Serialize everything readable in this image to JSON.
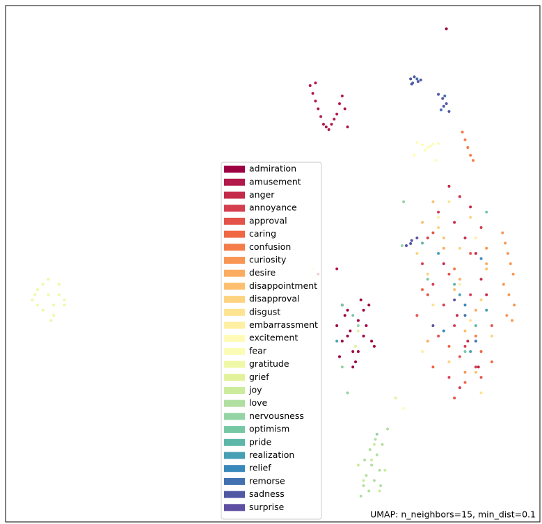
{
  "chart_data": {
    "type": "scatter",
    "annotation": "UMAP: n_neighbors=15, min_dist=0.1",
    "xlim": [
      0,
      100
    ],
    "ylim": [
      0,
      100
    ],
    "legend": "lower center",
    "series": [
      {
        "name": "admiration",
        "color": "#9e0142",
        "x": [
          62,
          63,
          64,
          65,
          66,
          67,
          68,
          69,
          62.5,
          63.5,
          64.5,
          65.5,
          66.5,
          67.5,
          68.5,
          63,
          65,
          67,
          64,
          66,
          82.5
        ],
        "y": [
          38,
          35,
          41,
          33,
          39,
          36,
          42,
          34,
          32,
          40,
          37,
          31,
          43,
          38,
          35,
          42,
          30,
          41,
          36,
          33,
          95.5
        ]
      },
      {
        "name": "amusement",
        "color": "#b11a4a",
        "x": [
          57,
          57.5,
          58,
          58.5,
          59,
          59.5,
          60,
          61,
          62,
          62.5,
          63,
          63.5,
          64,
          58,
          60.5,
          61.5,
          58.5,
          62
        ],
        "y": [
          84.5,
          83,
          81.5,
          80,
          78.5,
          77,
          76.5,
          77,
          79,
          81,
          82.5,
          80,
          76.5,
          85,
          76,
          78,
          48,
          49
        ]
      },
      {
        "name": "anger",
        "color": "#c42b4a",
        "x": [
          83,
          85,
          87,
          84,
          86,
          88,
          82,
          89,
          90,
          84.5,
          86.5,
          88.5
        ],
        "y": [
          65,
          63,
          61,
          58,
          55,
          52,
          50,
          47,
          44,
          40,
          35,
          30
        ]
      },
      {
        "name": "annoyance",
        "color": "#d53e4f",
        "x": [
          78,
          80,
          82,
          84,
          86,
          88,
          79,
          81,
          83,
          85,
          87,
          89
        ],
        "y": [
          50,
          46,
          42,
          38,
          34,
          30,
          55,
          60,
          28,
          26,
          44,
          57
        ]
      },
      {
        "name": "approval",
        "color": "#e35349",
        "x": [
          77,
          79,
          81,
          83,
          85,
          87,
          89,
          91,
          80,
          84
        ],
        "y": [
          40,
          44,
          36,
          48,
          32,
          52,
          28,
          38,
          56,
          24
        ]
      },
      {
        "name": "caring",
        "color": "#f06744",
        "x": [
          80,
          83,
          86,
          89,
          78,
          91
        ],
        "y": [
          30,
          34,
          27,
          33,
          45,
          31
        ]
      },
      {
        "name": "confusion",
        "color": "#f47c4a",
        "x": [
          85.5,
          86,
          86.5,
          87,
          87.5,
          84,
          88
        ],
        "y": [
          75.5,
          74,
          72.5,
          71,
          70,
          49,
          36
        ]
      },
      {
        "name": "curiosity",
        "color": "#f99655",
        "x": [
          93,
          93.5,
          94,
          94.5,
          95,
          93.2,
          94.2,
          95.2,
          93.8,
          94.8,
          90,
          86
        ],
        "y": [
          56,
          54,
          52,
          50,
          48,
          46,
          44,
          42,
          40,
          39,
          53,
          29
        ]
      },
      {
        "name": "desire",
        "color": "#fcac61",
        "x": [
          82,
          85,
          88,
          79,
          90
        ],
        "y": [
          53,
          47,
          41,
          35,
          50
        ]
      },
      {
        "name": "disappointment",
        "color": "#fdbf6f",
        "x": [
          80,
          82,
          84,
          86,
          88,
          90,
          78
        ],
        "y": [
          62,
          55,
          45,
          37,
          29,
          49,
          58
        ]
      },
      {
        "name": "disapproval",
        "color": "#fdd380",
        "x": [
          79,
          81,
          83,
          85,
          87,
          89,
          77,
          91
        ],
        "y": [
          48,
          57,
          31,
          53,
          59,
          43,
          52,
          36
        ]
      },
      {
        "name": "disgust",
        "color": "#fee391",
        "x": [
          83,
          87,
          80,
          89
        ],
        "y": [
          62,
          39,
          42,
          25
        ]
      },
      {
        "name": "embarrassment",
        "color": "#feefa3",
        "x": [
          81,
          85,
          78,
          88,
          57.5,
          57.8
        ],
        "y": [
          59,
          46,
          33,
          55,
          49,
          47.5
        ]
      },
      {
        "name": "excitement",
        "color": "#fffbb7",
        "x": [
          77,
          78,
          79,
          80,
          76.5
        ],
        "y": [
          73.5,
          73,
          72.5,
          73.2,
          71
        ]
      },
      {
        "name": "fear",
        "color": "#fbfdb6",
        "x": [
          78.5,
          79.5,
          81,
          80.5,
          74.5
        ],
        "y": [
          72,
          72.8,
          73.3,
          70,
          22
        ]
      },
      {
        "name": "gratitude",
        "color": "#eff8a6",
        "x": [
          5,
          6,
          7,
          8,
          9,
          10,
          11,
          6,
          7,
          9,
          10,
          8,
          5.5,
          11,
          8.5
        ],
        "y": [
          43,
          45,
          41,
          44,
          42,
          46,
          43,
          42,
          46,
          40,
          44,
          47,
          44,
          42,
          39
        ]
      },
      {
        "name": "grief",
        "color": "#e1f29a",
        "x": [
          66,
          65.5,
          73
        ],
        "y": [
          37,
          34,
          24
        ]
      },
      {
        "name": "joy",
        "color": "#cceb9d",
        "x": [
          67,
          68.5,
          70,
          69,
          71,
          66
        ],
        "y": [
          8,
          12,
          6,
          15,
          10,
          11
        ]
      },
      {
        "name": "love",
        "color": "#b1dfa2",
        "x": [
          66.5,
          67,
          67.5,
          68,
          68.5,
          69,
          69.5,
          70,
          70.5,
          67.2,
          68.2,
          69.2,
          70.2,
          71.5
        ],
        "y": [
          5,
          7,
          9,
          6,
          11,
          8,
          13,
          10,
          15,
          12,
          14,
          16,
          7,
          18
        ]
      },
      {
        "name": "nervousness",
        "color": "#94d4a4",
        "x": [
          63,
          64,
          66,
          69.5,
          74.2,
          74.5
        ],
        "y": [
          30,
          25,
          38,
          17,
          53.5,
          62
        ]
      },
      {
        "name": "optimism",
        "color": "#76c8a5",
        "x": [
          63,
          65,
          79,
          86,
          90
        ],
        "y": [
          42,
          40,
          47,
          33,
          60
        ]
      },
      {
        "name": "pride",
        "color": "#5db7a9",
        "x": [
          84,
          88,
          78
        ],
        "y": [
          46,
          38,
          54
        ]
      },
      {
        "name": "realization",
        "color": "#469fb3",
        "x": [
          81,
          85,
          87,
          90,
          62
        ],
        "y": [
          52,
          44,
          33,
          41,
          35
        ]
      },
      {
        "name": "relief",
        "color": "#3988bc",
        "x": [
          82,
          86,
          89
        ],
        "y": [
          37,
          42,
          51
        ]
      },
      {
        "name": "remorse",
        "color": "#4370b1",
        "x": [
          76.2,
          77,
          82.2,
          81.5,
          86,
          88
        ],
        "y": [
          85,
          85.8,
          82.5,
          79.8,
          40,
          35
        ]
      },
      {
        "name": "sadness",
        "color": "#5158a3",
        "x": [
          75.8,
          76.5,
          77.2,
          77.7,
          76,
          81,
          81.8,
          82.5,
          83,
          82,
          75.8
        ],
        "y": [
          85.8,
          86.2,
          85.3,
          85.6,
          84.8,
          82.8,
          82,
          81,
          79.5,
          80.5,
          53.9
        ]
      },
      {
        "name": "surprise",
        "color": "#5e4fa2",
        "x": [
          75,
          76,
          77,
          84,
          80
        ],
        "y": [
          53.5,
          54.5,
          55,
          43,
          38
        ]
      }
    ]
  }
}
